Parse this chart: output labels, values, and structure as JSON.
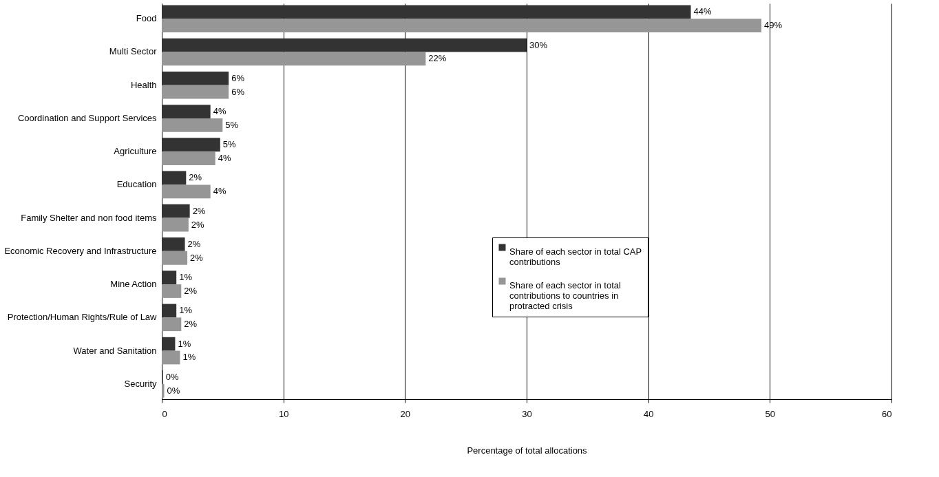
{
  "chart_data": {
    "type": "bar",
    "orientation": "horizontal",
    "xlabel": "Percentage of total allocations",
    "categories": [
      "Food",
      "Multi Sector",
      "Health",
      "Coordination and Support Services",
      "Agriculture",
      "Education",
      "Family Shelter and non food items",
      "Economic Recovery and Infrastructure",
      "Mine Action",
      "Protection/Human Rights/Rule of Law",
      "Water and Sanitation",
      "Security"
    ],
    "series": [
      {
        "name": "Share of each sector in total CAP contributions",
        "color": "#333333",
        "values": [
          43.5,
          30.0,
          5.5,
          4.0,
          4.8,
          2.0,
          2.3,
          1.9,
          1.2,
          1.2,
          1.1,
          0.1
        ],
        "value_labels": [
          "44%",
          "30%",
          "6%",
          "4%",
          "5%",
          "2%",
          "2%",
          "2%",
          "1%",
          "1%",
          "1%",
          "0%"
        ]
      },
      {
        "name": "Share of each sector in total contributions to countries in protracted crisis",
        "color": "#969696",
        "values": [
          49.3,
          21.7,
          5.5,
          5.0,
          4.4,
          4.0,
          2.2,
          2.1,
          1.6,
          1.6,
          1.5,
          0.2
        ],
        "value_labels": [
          "49%",
          "22%",
          "6%",
          "5%",
          "4%",
          "4%",
          "2%",
          "2%",
          "2%",
          "2%",
          "1%",
          "0%"
        ]
      }
    ],
    "xlim": [
      0,
      60
    ],
    "xticks": [
      0,
      10,
      20,
      30,
      40,
      50,
      60
    ],
    "grid": "x",
    "legend": "right"
  }
}
